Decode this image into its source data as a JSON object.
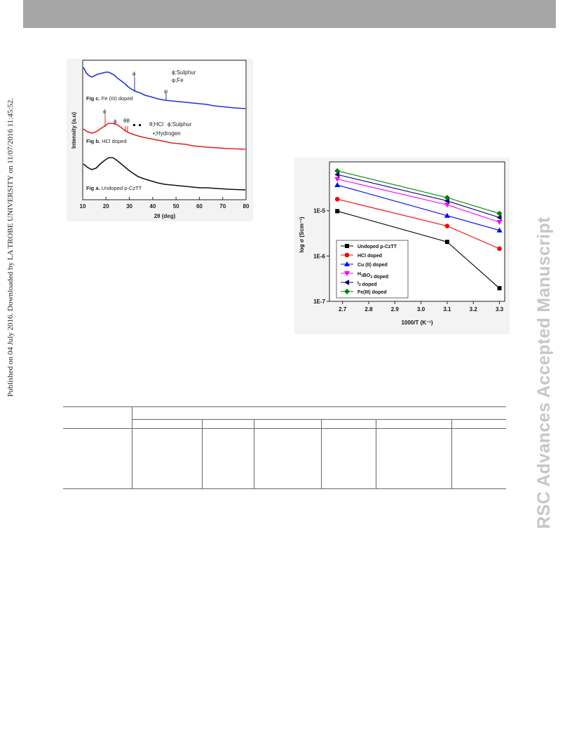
{
  "side_left_text": "Published on 04 July 2016. Downloaded by LA TROBE UNIVERSITY on 11/07/2016 11:45:52.",
  "side_right_text": "RSC Advances Accepted Manuscript",
  "xrd": {
    "ylabel": "Intensity (a.u)",
    "xlabel": "2θ (deg)",
    "ticks": [
      "10",
      "20",
      "30",
      "40",
      "50",
      "60",
      "70",
      "80"
    ],
    "legend_sulphur": "ϕ;Sulphur",
    "legend_fe": "φ;Fe",
    "legend_hcl": "θ;HCl",
    "legend_sulphur2": "ϕ;Sulphur",
    "legend_hydrogen": "▪;Hydrogen",
    "label_c_bold": "Fig c.",
    "label_c_text": " Fe (III) doped",
    "label_b_bold": "Fig b.",
    "label_b_text": " HCl doped",
    "label_a_bold": "Fig a.",
    "label_a_text": " Undoped p-CzTT",
    "peak_symbol_phi": "ϕ",
    "peak_symbol_theta": "θ",
    "peak_symbol_theta_pair": "θθ",
    "peak_symbol_fe": "φ"
  },
  "chart_data": {
    "type": "line",
    "x": [
      2.68,
      3.1,
      3.3
    ],
    "xlabel": "1000/T (K⁻¹)",
    "ylabel": "log σ (Scm⁻¹)",
    "yscale": "log",
    "xlim": [
      2.65,
      3.32
    ],
    "ylim": [
      1e-07,
      0.00012
    ],
    "xticks": [
      "2.7",
      "2.8",
      "2.9",
      "3.0",
      "3.1",
      "3.2",
      "3.3"
    ],
    "yticks": [
      "1E-7",
      "1E-6",
      "1E-5"
    ],
    "legend_position": "bottom-left",
    "series": [
      {
        "name": "Undoped p-CzTT",
        "color": "#000000",
        "marker": "square",
        "values": [
          9.8e-06,
          2.05e-06,
          1.95e-07
        ]
      },
      {
        "name": "HCl doped",
        "color": "#ff0000",
        "marker": "circle",
        "values": [
          1.8e-05,
          4.6e-06,
          1.45e-06
        ]
      },
      {
        "name": "Cu (II) doped",
        "color": "#0000ff",
        "marker": "triangle-up",
        "values": [
          3.7e-05,
          7.8e-06,
          3.7e-06
        ]
      },
      {
        "name": "H3BO3 doped",
        "color": "#ff00ff",
        "marker": "triangle-down",
        "values": [
          5e-05,
          1.35e-05,
          5.6e-06
        ]
      },
      {
        "name": "I2 doped",
        "color": "#000080",
        "marker": "triangle-left",
        "values": [
          6.3e-05,
          1.65e-05,
          7.1e-06
        ]
      },
      {
        "name": "Fe(III) doped",
        "color": "#008000",
        "marker": "diamond",
        "values": [
          7.6e-05,
          1.95e-05,
          8.7e-06
        ]
      }
    ]
  }
}
